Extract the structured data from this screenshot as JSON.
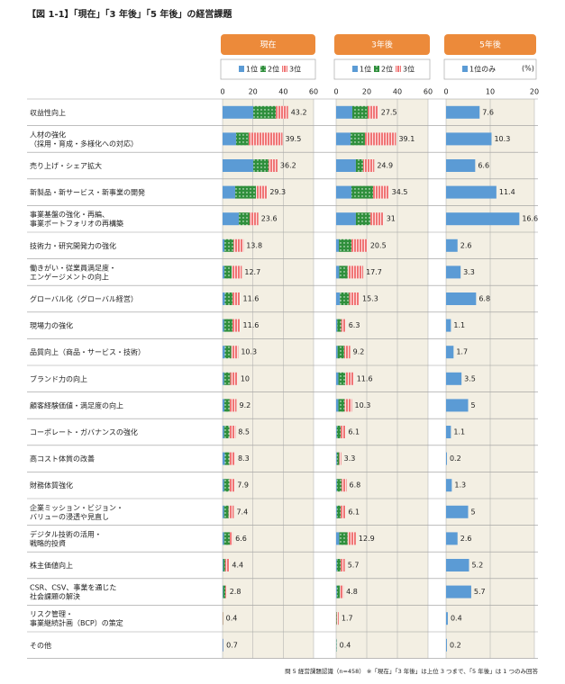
{
  "chart_data": {
    "type": "bar",
    "stacked": true,
    "title": "【図 1-1】「現在」「3 年後」「5 年後」の経営課題",
    "note": "問 5 経営課題認識（n=458） ※「現在」「3 年後」は上位 3 つまで、「5 年後」は 1 つのみ回答",
    "unit_label": "(%)",
    "categories": [
      "収益性向上",
      "人材の強化\n（採用・育成・多様化への対応）",
      "売り上げ・シェア拡大",
      "新製品・新サービス・新事業の開発",
      "事業基盤の強化・再編、\n事業ポートフォリオの再構築",
      "技術力・研究開発力の強化",
      "働きがい・従業員満足度・\nエンゲージメントの向上",
      "グローバル化（グローバル経営）",
      "現場力の強化",
      "品質向上（商品・サービス・技術）",
      "ブランド力の向上",
      "顧客経験価値・満足度の向上",
      "コーポレート・ガバナンスの強化",
      "高コスト体質の改善",
      "財務体質強化",
      "企業ミッション・ビジョン・\nバリューの浸透や見直し",
      "デジタル技術の活用・\n戦略的投資",
      "株主価値向上",
      "CSR、CSV、事業を通じた\n社会課題の解決",
      "リスク管理・\n事業継続計画（BCP）の策定",
      "その他"
    ],
    "panels": [
      {
        "header": "現在",
        "xlim": [
          0,
          60
        ],
        "xticks": [
          0,
          20,
          40,
          60
        ],
        "totals": [
          43.2,
          39.5,
          36.2,
          29.3,
          23.6,
          13.8,
          12.7,
          11.6,
          11.6,
          10.3,
          10.0,
          9.2,
          8.5,
          8.3,
          7.9,
          7.4,
          6.6,
          4.4,
          2.8,
          0.4,
          0.7
        ],
        "series": [
          {
            "name": "1位",
            "color": "#5b9bd5",
            "pattern": "none",
            "values": [
              20.2,
              8.9,
              20.2,
              8.3,
              10.7,
              1.2,
              1.2,
              1.5,
              1.0,
              1.5,
              1.0,
              1.2,
              1.0,
              1.5,
              1.0,
              1.0,
              1.0,
              0.5,
              0.4,
              0.0,
              0.5
            ]
          },
          {
            "name": "2位",
            "color": "#2f8f3c",
            "pattern": "dots",
            "values": [
              14.9,
              8.3,
              10.1,
              13.7,
              7.1,
              6.0,
              4.8,
              5.0,
              5.5,
              4.2,
              4.0,
              3.5,
              3.5,
              3.0,
              3.5,
              3.0,
              3.8,
              1.2,
              1.4,
              0.2,
              0.0
            ]
          },
          {
            "name": "3位",
            "color": "#f07575",
            "pattern": "stripes",
            "values": [
              8.1,
              22.3,
              5.9,
              7.3,
              5.8,
              6.6,
              6.7,
              5.1,
              5.1,
              4.6,
              5.0,
              4.5,
              4.0,
              3.8,
              3.4,
              3.4,
              1.8,
              2.7,
              1.0,
              0.2,
              0.2
            ]
          }
        ]
      },
      {
        "header": "3年後",
        "xlim": [
          0,
          60
        ],
        "xticks": [
          0,
          20,
          40,
          60
        ],
        "totals": [
          27.5,
          39.1,
          24.9,
          34.5,
          31.0,
          20.5,
          17.7,
          15.3,
          6.3,
          9.2,
          11.6,
          10.3,
          6.1,
          3.3,
          6.8,
          6.1,
          12.9,
          5.7,
          4.8,
          1.7,
          0.4
        ],
        "series": [
          {
            "name": "1位",
            "color": "#5b9bd5",
            "pattern": "none",
            "values": [
              10.6,
              9.4,
              12.9,
              10.0,
              12.9,
              1.8,
              2.0,
              2.5,
              0.8,
              1.0,
              1.5,
              1.5,
              0.5,
              0.5,
              0.5,
              0.5,
              2.0,
              0.5,
              0.5,
              0.0,
              0.2
            ]
          },
          {
            "name": "2位",
            "color": "#2f8f3c",
            "pattern": "dots",
            "values": [
              10.0,
              9.4,
              4.7,
              14.1,
              9.4,
              8.2,
              5.5,
              6.0,
              2.5,
              4.2,
              4.5,
              4.0,
              2.5,
              1.5,
              3.0,
              2.5,
              5.5,
              2.5,
              2.0,
              0.4,
              0.2
            ]
          },
          {
            "name": "3位",
            "color": "#f07575",
            "pattern": "stripes",
            "values": [
              6.9,
              20.3,
              7.3,
              10.4,
              8.7,
              10.5,
              10.2,
              6.8,
              3.0,
              4.0,
              5.6,
              4.8,
              3.1,
              1.3,
              3.3,
              3.1,
              5.4,
              2.7,
              2.3,
              1.3,
              0.0
            ]
          }
        ]
      },
      {
        "header": "5年後",
        "xlim": [
          0,
          20
        ],
        "xticks": [
          0,
          10,
          20
        ],
        "series": [
          {
            "name": "1位のみ",
            "color": "#5b9bd5",
            "pattern": "none",
            "values": [
              7.6,
              10.3,
              6.6,
              11.4,
              16.6,
              2.6,
              3.3,
              6.8,
              1.1,
              1.7,
              3.5,
              5.0,
              1.1,
              0.2,
              1.3,
              5.0,
              2.6,
              5.2,
              5.7,
              0.4,
              0.2
            ]
          }
        ]
      }
    ]
  }
}
